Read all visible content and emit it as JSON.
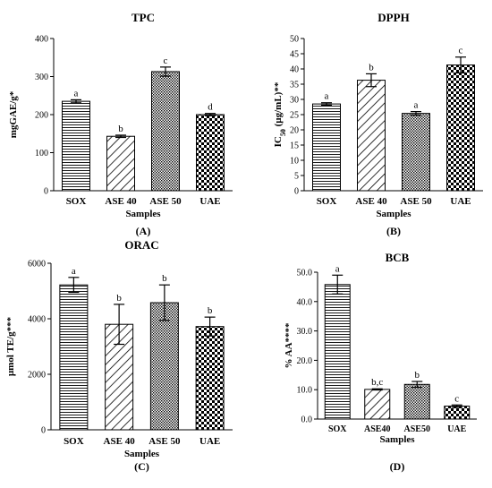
{
  "chart_data": [
    {
      "type": "bar",
      "title": "TPC",
      "ylabel": "mgGAE/g*",
      "xlabel": "Samples",
      "panel_label": "(A)",
      "categories": [
        "SOX",
        "ASE 40",
        "ASE 50",
        "UAE"
      ],
      "values": [
        235,
        143,
        313,
        200
      ],
      "errors": [
        4,
        3,
        12,
        3
      ],
      "letters": [
        "a",
        "b",
        "c",
        "d"
      ],
      "patterns": [
        "hlines",
        "diag",
        "dots",
        "checker"
      ],
      "ylim": [
        0,
        400
      ],
      "yticks": [
        "0",
        "100",
        "200",
        "300",
        "400"
      ],
      "grid": false
    },
    {
      "type": "bar",
      "title": "DPPH",
      "ylabel": "IC50 (µg/mL)**",
      "ylabel_main": "IC",
      "ylabel_sub": "50",
      "ylabel_rest": " (µg/mL)**",
      "xlabel": "Samples",
      "panel_label": "(B)",
      "categories": [
        "SOX",
        "ASE 40",
        "ASE 50",
        "UAE"
      ],
      "values": [
        28.5,
        36.3,
        25.4,
        41.3
      ],
      "errors": [
        0.4,
        2.1,
        0.6,
        2.6
      ],
      "letters": [
        "a",
        "b",
        "a",
        "c"
      ],
      "patterns": [
        "hlines",
        "diag",
        "dots",
        "checker"
      ],
      "ylim": [
        0,
        50
      ],
      "yticks": [
        "0",
        "5",
        "10",
        "15",
        "20",
        "25",
        "30",
        "35",
        "40",
        "45",
        "50"
      ],
      "grid": false
    },
    {
      "type": "bar",
      "title": "ORAC",
      "ylabel": "µmol TE/g***",
      "xlabel": "Samples",
      "panel_label": "(C)",
      "categories": [
        "SOX",
        "ASE 40",
        "ASE 50",
        "UAE"
      ],
      "values": [
        5220,
        3800,
        4580,
        3720
      ],
      "errors": [
        270,
        720,
        640,
        340
      ],
      "letters": [
        "a",
        "b",
        "b",
        "b"
      ],
      "patterns": [
        "hlines",
        "diag",
        "dots",
        "checker"
      ],
      "ylim": [
        0,
        6000
      ],
      "yticks": [
        "0",
        "2000",
        "4000",
        "6000"
      ],
      "grid": false
    },
    {
      "type": "bar",
      "title": "BCB",
      "ylabel": "% AA****",
      "xlabel": "Samples",
      "panel_label": "(D)",
      "categories": [
        "SOX",
        "ASE40",
        "ASE50",
        "UAE"
      ],
      "values": [
        45.8,
        10.1,
        11.8,
        4.4
      ],
      "errors": [
        3.2,
        0.2,
        1.0,
        0.4
      ],
      "letters": [
        "a",
        "b,c",
        "b",
        "c"
      ],
      "patterns": [
        "hlines",
        "diag",
        "dots",
        "checker"
      ],
      "ylim": [
        0,
        50
      ],
      "yticks": [
        "0.0",
        "10.0",
        "20.0",
        "30.0",
        "40.0",
        "50.0"
      ],
      "grid": false
    }
  ]
}
